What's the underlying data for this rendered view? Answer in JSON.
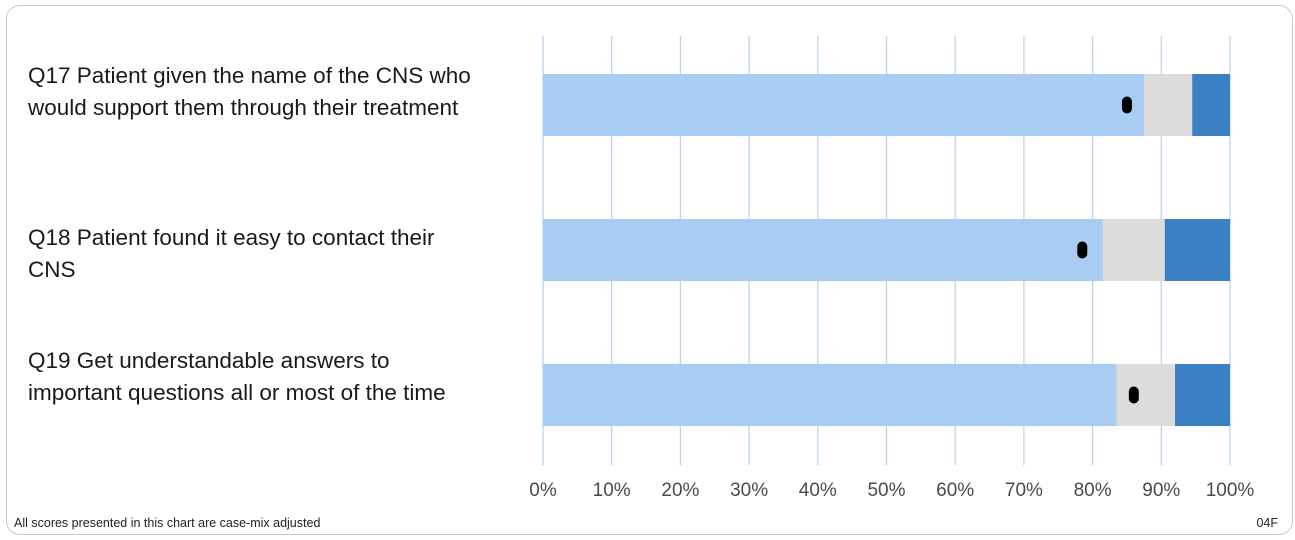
{
  "chart_data": {
    "type": "bar",
    "stacked": true,
    "orientation": "horizontal",
    "categories": [
      "Q17 Patient given the name of the CNS who would support them through their treatment",
      "Q18 Patient found it easy to contact their CNS",
      "Q19 Get understandable answers to important questions all or most of the time"
    ],
    "series": [
      {
        "color": "#a9cdf2",
        "values": [
          87.5,
          81.5,
          83.5
        ]
      },
      {
        "color": "#dcdcdc",
        "values": [
          7,
          9,
          8.5
        ]
      },
      {
        "color": "#3a80c3",
        "values": [
          5.5,
          9.5,
          8
        ]
      }
    ],
    "markers": [
      85,
      78.5,
      86
    ],
    "xlim": [
      0,
      100
    ],
    "xticks": [
      "0%",
      "10%",
      "20%",
      "30%",
      "40%",
      "50%",
      "60%",
      "70%",
      "80%",
      "90%",
      "100%"
    ],
    "grid": true,
    "gridColor": "#bcd3ea",
    "markerColor": "#000000"
  },
  "footer": {
    "note": "All scores presented in this chart are case-mix adjusted",
    "code": "04F"
  }
}
